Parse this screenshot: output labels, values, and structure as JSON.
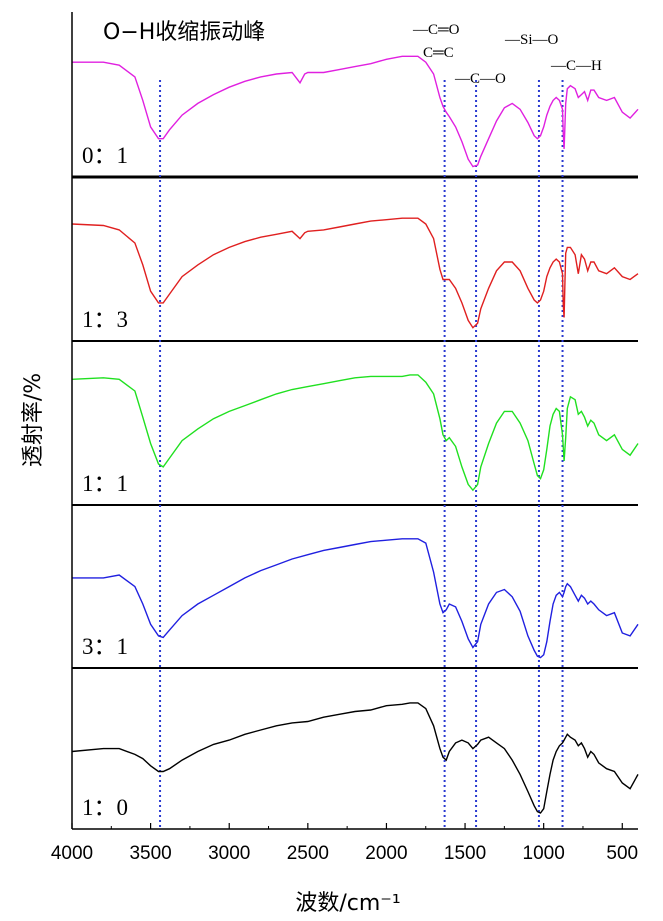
{
  "chart_data": {
    "type": "line",
    "xlabel": "波数/cm⁻¹",
    "ylabel": "透射率/%",
    "xlim": [
      4000,
      400
    ],
    "x_ticks": [
      "4000",
      "3500",
      "3000",
      "2500",
      "2000",
      "1500",
      "1000",
      "500"
    ],
    "x_tick_values": [
      4000,
      3500,
      3000,
      2500,
      2000,
      1500,
      1000,
      500
    ],
    "grid": false,
    "series": [
      {
        "name": "0：1",
        "color": "#e020e0",
        "x": [
          4000,
          3800,
          3700,
          3600,
          3550,
          3500,
          3450,
          3420,
          3380,
          3300,
          3200,
          3100,
          3000,
          2900,
          2800,
          2700,
          2600,
          2550,
          2520,
          2500,
          2400,
          2300,
          2200,
          2100,
          2000,
          1900,
          1850,
          1800,
          1750,
          1700,
          1660,
          1640,
          1620,
          1600,
          1560,
          1520,
          1480,
          1450,
          1420,
          1400,
          1350,
          1300,
          1250,
          1200,
          1150,
          1100,
          1060,
          1040,
          1020,
          1000,
          980,
          960,
          940,
          920,
          900,
          880,
          875,
          870,
          865,
          860,
          850,
          830,
          800,
          780,
          760,
          740,
          720,
          700,
          680,
          650,
          600,
          550,
          500,
          450,
          400
        ],
        "y": [
          0.74,
          0.74,
          0.72,
          0.64,
          0.48,
          0.3,
          0.22,
          0.22,
          0.28,
          0.38,
          0.46,
          0.52,
          0.57,
          0.61,
          0.64,
          0.66,
          0.67,
          0.6,
          0.66,
          0.67,
          0.67,
          0.69,
          0.71,
          0.73,
          0.76,
          0.78,
          0.78,
          0.78,
          0.74,
          0.66,
          0.5,
          0.44,
          0.4,
          0.37,
          0.3,
          0.2,
          0.08,
          0.03,
          0.04,
          0.1,
          0.22,
          0.34,
          0.43,
          0.46,
          0.42,
          0.33,
          0.24,
          0.22,
          0.24,
          0.3,
          0.38,
          0.44,
          0.48,
          0.5,
          0.48,
          0.42,
          0.25,
          0.15,
          0.3,
          0.46,
          0.56,
          0.58,
          0.56,
          0.5,
          0.52,
          0.54,
          0.48,
          0.55,
          0.55,
          0.5,
          0.48,
          0.5,
          0.4,
          0.36,
          0.42
        ]
      },
      {
        "name": "1：3",
        "color": "#e02020",
        "x": [
          4000,
          3800,
          3700,
          3600,
          3550,
          3500,
          3450,
          3420,
          3380,
          3300,
          3200,
          3100,
          3000,
          2900,
          2800,
          2700,
          2600,
          2550,
          2520,
          2500,
          2400,
          2300,
          2200,
          2100,
          2000,
          1900,
          1850,
          1800,
          1750,
          1700,
          1660,
          1640,
          1620,
          1600,
          1560,
          1520,
          1480,
          1450,
          1420,
          1400,
          1350,
          1300,
          1250,
          1200,
          1150,
          1100,
          1060,
          1040,
          1020,
          1000,
          980,
          960,
          940,
          920,
          900,
          880,
          875,
          870,
          865,
          860,
          850,
          830,
          800,
          780,
          760,
          740,
          720,
          700,
          680,
          650,
          600,
          550,
          500,
          450,
          400
        ],
        "y": [
          0.76,
          0.75,
          0.72,
          0.63,
          0.48,
          0.3,
          0.22,
          0.22,
          0.28,
          0.4,
          0.48,
          0.55,
          0.6,
          0.64,
          0.67,
          0.69,
          0.71,
          0.66,
          0.7,
          0.71,
          0.72,
          0.74,
          0.76,
          0.78,
          0.79,
          0.8,
          0.8,
          0.8,
          0.76,
          0.66,
          0.45,
          0.38,
          0.38,
          0.38,
          0.32,
          0.22,
          0.1,
          0.05,
          0.08,
          0.18,
          0.32,
          0.44,
          0.5,
          0.5,
          0.44,
          0.32,
          0.24,
          0.22,
          0.24,
          0.3,
          0.4,
          0.46,
          0.5,
          0.52,
          0.5,
          0.42,
          0.2,
          0.12,
          0.35,
          0.56,
          0.6,
          0.6,
          0.55,
          0.42,
          0.55,
          0.52,
          0.44,
          0.5,
          0.5,
          0.44,
          0.42,
          0.46,
          0.4,
          0.38,
          0.42
        ]
      },
      {
        "name": "1：1",
        "color": "#20e020",
        "x": [
          4000,
          3800,
          3700,
          3600,
          3550,
          3500,
          3450,
          3420,
          3380,
          3300,
          3200,
          3100,
          3000,
          2900,
          2800,
          2700,
          2600,
          2500,
          2400,
          2300,
          2200,
          2100,
          2000,
          1900,
          1850,
          1800,
          1750,
          1700,
          1660,
          1640,
          1620,
          1600,
          1560,
          1520,
          1480,
          1450,
          1420,
          1400,
          1350,
          1300,
          1250,
          1200,
          1150,
          1100,
          1060,
          1040,
          1020,
          1000,
          980,
          960,
          940,
          920,
          900,
          880,
          870,
          860,
          850,
          830,
          800,
          780,
          760,
          740,
          720,
          700,
          680,
          650,
          600,
          550,
          500,
          450,
          400
        ],
        "y": [
          0.82,
          0.83,
          0.82,
          0.74,
          0.56,
          0.38,
          0.24,
          0.22,
          0.28,
          0.4,
          0.48,
          0.55,
          0.6,
          0.64,
          0.68,
          0.72,
          0.75,
          0.77,
          0.79,
          0.81,
          0.83,
          0.84,
          0.84,
          0.84,
          0.85,
          0.85,
          0.8,
          0.72,
          0.55,
          0.44,
          0.4,
          0.42,
          0.36,
          0.22,
          0.1,
          0.06,
          0.1,
          0.22,
          0.38,
          0.52,
          0.6,
          0.6,
          0.52,
          0.4,
          0.24,
          0.16,
          0.14,
          0.2,
          0.34,
          0.5,
          0.58,
          0.62,
          0.6,
          0.44,
          0.26,
          0.42,
          0.62,
          0.7,
          0.68,
          0.58,
          0.6,
          0.56,
          0.5,
          0.54,
          0.52,
          0.44,
          0.4,
          0.44,
          0.34,
          0.3,
          0.38
        ]
      },
      {
        "name": "3：1",
        "color": "#2020e0",
        "x": [
          4000,
          3800,
          3700,
          3600,
          3550,
          3500,
          3450,
          3420,
          3380,
          3300,
          3200,
          3100,
          3000,
          2900,
          2800,
          2700,
          2600,
          2500,
          2400,
          2300,
          2200,
          2100,
          2000,
          1900,
          1850,
          1800,
          1750,
          1700,
          1660,
          1640,
          1620,
          1600,
          1560,
          1520,
          1480,
          1450,
          1420,
          1400,
          1350,
          1300,
          1250,
          1200,
          1150,
          1100,
          1060,
          1040,
          1020,
          1000,
          980,
          960,
          940,
          920,
          900,
          880,
          870,
          860,
          850,
          830,
          800,
          780,
          760,
          740,
          720,
          700,
          680,
          650,
          600,
          550,
          500,
          450,
          400
        ],
        "y": [
          0.58,
          0.58,
          0.6,
          0.52,
          0.4,
          0.26,
          0.18,
          0.17,
          0.22,
          0.32,
          0.4,
          0.46,
          0.52,
          0.58,
          0.63,
          0.67,
          0.71,
          0.74,
          0.77,
          0.79,
          0.81,
          0.83,
          0.84,
          0.85,
          0.85,
          0.85,
          0.82,
          0.62,
          0.4,
          0.34,
          0.36,
          0.4,
          0.38,
          0.28,
          0.16,
          0.1,
          0.14,
          0.26,
          0.4,
          0.48,
          0.5,
          0.45,
          0.35,
          0.18,
          0.08,
          0.04,
          0.03,
          0.05,
          0.14,
          0.28,
          0.4,
          0.46,
          0.48,
          0.45,
          0.48,
          0.52,
          0.54,
          0.52,
          0.46,
          0.42,
          0.46,
          0.44,
          0.4,
          0.42,
          0.4,
          0.36,
          0.32,
          0.34,
          0.2,
          0.18,
          0.26
        ]
      },
      {
        "name": "1：0",
        "color": "#000000",
        "x": [
          4000,
          3800,
          3700,
          3600,
          3550,
          3500,
          3450,
          3420,
          3380,
          3300,
          3200,
          3100,
          3000,
          2900,
          2800,
          2700,
          2600,
          2500,
          2400,
          2300,
          2200,
          2100,
          2000,
          1900,
          1850,
          1800,
          1750,
          1700,
          1660,
          1640,
          1620,
          1600,
          1560,
          1520,
          1480,
          1450,
          1420,
          1400,
          1350,
          1300,
          1250,
          1200,
          1150,
          1100,
          1060,
          1040,
          1020,
          1000,
          980,
          960,
          940,
          920,
          900,
          880,
          870,
          860,
          850,
          830,
          800,
          780,
          760,
          740,
          720,
          700,
          680,
          650,
          600,
          550,
          500,
          450,
          400
        ],
        "y": [
          0.5,
          0.52,
          0.52,
          0.48,
          0.45,
          0.4,
          0.36,
          0.36,
          0.38,
          0.44,
          0.5,
          0.55,
          0.58,
          0.62,
          0.65,
          0.68,
          0.7,
          0.71,
          0.74,
          0.76,
          0.78,
          0.79,
          0.82,
          0.83,
          0.84,
          0.84,
          0.8,
          0.68,
          0.52,
          0.46,
          0.44,
          0.5,
          0.56,
          0.58,
          0.56,
          0.52,
          0.55,
          0.58,
          0.6,
          0.56,
          0.52,
          0.44,
          0.34,
          0.22,
          0.12,
          0.08,
          0.07,
          0.1,
          0.22,
          0.34,
          0.44,
          0.5,
          0.54,
          0.56,
          0.58,
          0.6,
          0.62,
          0.6,
          0.58,
          0.54,
          0.56,
          0.52,
          0.46,
          0.5,
          0.48,
          0.42,
          0.38,
          0.36,
          0.28,
          0.24,
          0.34
        ]
      }
    ],
    "reference_lines": {
      "color": "#2a3ad0",
      "x": [
        3440,
        1630,
        1430,
        1030,
        880
      ]
    },
    "annotations": [
      {
        "text": "O−H收缩振动峰"
      },
      {
        "text": "—C═O"
      },
      {
        "text": "C═C"
      },
      {
        "text": "—C—O"
      },
      {
        "text": "—Si—O"
      },
      {
        "text": "—C—H"
      }
    ]
  }
}
